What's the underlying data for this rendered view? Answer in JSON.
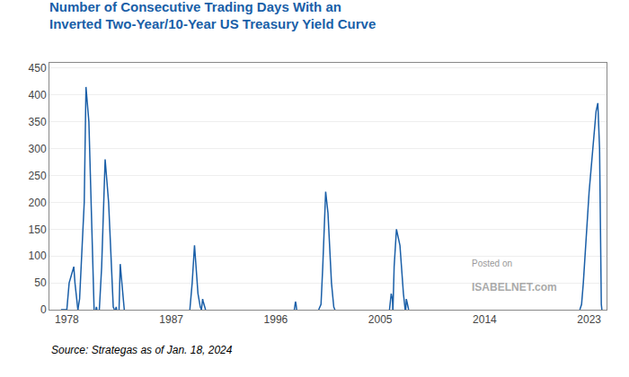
{
  "chart_data": {
    "type": "line",
    "title": "Number of Consecutive Trading Days With an\nInverted Two-Year/10-Year US Treasury Yield Curve",
    "annotations": [
      "Posted on",
      "ISABELNET.com",
      "Source: Strategas as of Jan. 18, 2024"
    ],
    "color": "#1a5fa8",
    "xlim": [
      1976.5,
      2024.5
    ],
    "ylim": [
      0,
      460
    ],
    "xticks": [
      1978,
      1987,
      1996,
      2005,
      2014,
      2023
    ],
    "yticks": [
      0,
      50,
      100,
      150,
      200,
      250,
      300,
      350,
      400,
      450
    ],
    "grid": "y",
    "series": [
      {
        "x": [
          1977.5,
          1978.0,
          1978.2,
          1978.6,
          1978.7,
          1978.9,
          1978.95
        ],
        "values": [
          0,
          0,
          50,
          80,
          50,
          5,
          0
        ]
      },
      {
        "x": [
          1978.95,
          1979.1,
          1979.5,
          1979.65,
          1979.9,
          1980.3,
          1980.35
        ],
        "values": [
          0,
          20,
          200,
          415,
          350,
          5,
          0
        ]
      },
      {
        "x": [
          1980.5,
          1980.55,
          1980.6
        ],
        "values": [
          0,
          5,
          0
        ]
      },
      {
        "x": [
          1980.8,
          1981.0,
          1981.3,
          1981.6,
          1982.0,
          1982.1
        ],
        "values": [
          0,
          80,
          280,
          200,
          5,
          0
        ]
      },
      {
        "x": [
          1982.2,
          1982.25,
          1982.3
        ],
        "values": [
          0,
          5,
          0
        ]
      },
      {
        "x": [
          1982.5,
          1982.6,
          1982.7,
          1982.9,
          1982.95
        ],
        "values": [
          0,
          85,
          60,
          5,
          0
        ]
      },
      {
        "x": [
          1988.6,
          1988.8,
          1989.0,
          1989.1,
          1989.3,
          1989.5,
          1989.6
        ],
        "values": [
          0,
          50,
          120,
          90,
          30,
          5,
          0
        ]
      },
      {
        "x": [
          1989.6,
          1989.7,
          1989.75,
          1989.9,
          1989.95
        ],
        "values": [
          0,
          20,
          15,
          5,
          0
        ]
      },
      {
        "x": [
          1997.6,
          1997.65,
          1997.7,
          1997.75,
          1997.8
        ],
        "values": [
          0,
          10,
          15,
          10,
          0
        ]
      },
      {
        "x": [
          1999.7,
          1999.9,
          2000.05,
          2000.2,
          2000.3,
          2000.5,
          2000.8,
          2001.0,
          2001.1
        ],
        "values": [
          0,
          10,
          80,
          180,
          220,
          180,
          50,
          5,
          0
        ]
      },
      {
        "x": [
          2005.8,
          2005.9,
          2005.95,
          2006.05,
          2006.1
        ],
        "values": [
          0,
          25,
          30,
          20,
          0
        ]
      },
      {
        "x": [
          2006.1,
          2006.2,
          2006.4,
          2006.7,
          2007.0,
          2007.1,
          2007.15
        ],
        "values": [
          0,
          80,
          150,
          120,
          30,
          5,
          0
        ]
      },
      {
        "x": [
          2007.2,
          2007.25,
          2007.3,
          2007.4,
          2007.45
        ],
        "values": [
          0,
          20,
          15,
          5,
          0
        ]
      },
      {
        "x": [
          2022.2,
          2022.3,
          2022.35,
          2022.5,
          2022.8,
          2023.0,
          2023.3,
          2023.6,
          2023.75,
          2023.9,
          2024.05,
          2024.1
        ],
        "values": [
          0,
          5,
          10,
          50,
          150,
          220,
          295,
          370,
          385,
          300,
          10,
          0
        ]
      }
    ]
  }
}
